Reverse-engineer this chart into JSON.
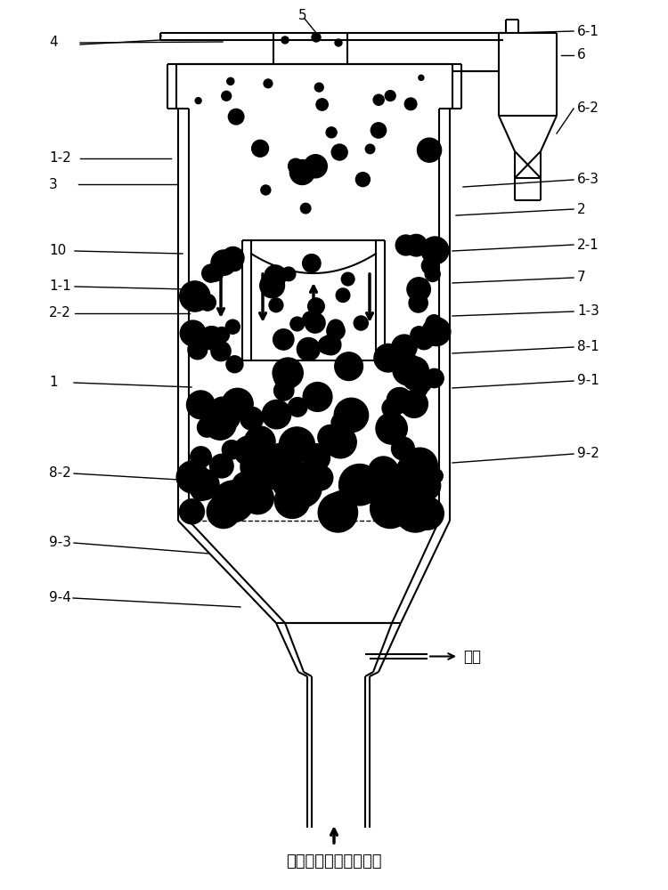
{
  "bg_color": "#ffffff",
  "line_color": "#000000",
  "bottom_label": "氧气和氮气的混合气体",
  "cl_label": "氯气",
  "particles_seed": 12,
  "labels_left": [
    [
      "4",
      55,
      952
    ],
    [
      "1-2",
      55,
      822
    ],
    [
      "3",
      55,
      793
    ],
    [
      "10",
      55,
      718
    ],
    [
      "1-1",
      55,
      678
    ],
    [
      "2-2",
      55,
      648
    ],
    [
      "1",
      55,
      570
    ],
    [
      "8-2",
      55,
      468
    ],
    [
      "9-3",
      55,
      390
    ],
    [
      "9-4",
      55,
      328
    ]
  ],
  "labels_right": [
    [
      "6-1",
      648,
      965
    ],
    [
      "6",
      648,
      938
    ],
    [
      "6-2",
      648,
      878
    ],
    [
      "6-3",
      648,
      798
    ],
    [
      "2",
      648,
      765
    ],
    [
      "2-1",
      648,
      725
    ],
    [
      "7",
      648,
      688
    ],
    [
      "1-3",
      648,
      650
    ],
    [
      "8-1",
      648,
      610
    ],
    [
      "9-1",
      648,
      572
    ],
    [
      "9-2",
      648,
      490
    ]
  ],
  "label_5": [
    335,
    982
  ]
}
